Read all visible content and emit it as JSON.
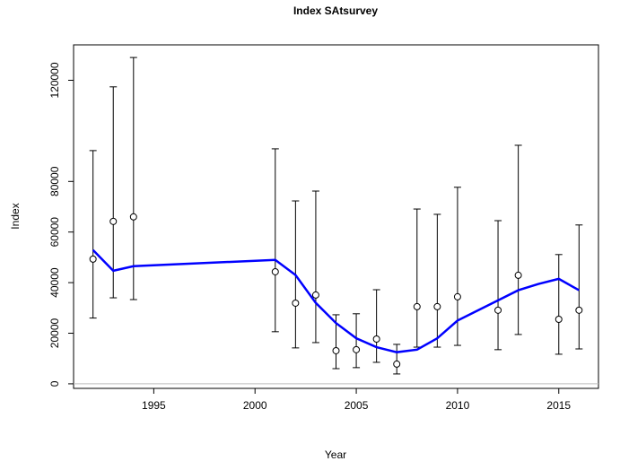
{
  "chart_data": {
    "type": "line",
    "title": "Index SAtsurvey",
    "xlabel": "Year",
    "ylabel": "Index",
    "x": [
      1992,
      1993,
      1994,
      2001,
      2002,
      2003,
      2004,
      2005,
      2006,
      2007,
      2008,
      2009,
      2010,
      2011,
      2012,
      2013,
      2014,
      2015,
      2016
    ],
    "fit": {
      "color": "#0000ff",
      "values": [
        52900,
        44700,
        46500,
        49000,
        43000,
        32000,
        24000,
        18000,
        14500,
        12500,
        13500,
        18000,
        25000,
        29000,
        33000,
        37000,
        39500,
        41500,
        37000
      ]
    },
    "observed": {
      "color": "#000000",
      "values": [
        49300,
        64200,
        66000,
        44300,
        31900,
        35100,
        13100,
        13500,
        17700,
        7800,
        30500,
        30500,
        34400,
        null,
        29100,
        42900,
        null,
        25500,
        29100
      ],
      "lower": [
        26000,
        34000,
        33300,
        20600,
        14200,
        16300,
        6000,
        6400,
        8500,
        3900,
        14500,
        14500,
        15200,
        null,
        13500,
        19500,
        null,
        11700,
        13800
      ],
      "upper": [
        92200,
        117400,
        129000,
        92900,
        72300,
        76200,
        27300,
        27700,
        37200,
        15600,
        69100,
        67000,
        77700,
        null,
        64500,
        94300,
        null,
        51100,
        62800
      ]
    },
    "xlim": [
      1991.04,
      2016.96
    ],
    "xticks": [
      1995,
      2000,
      2005,
      2010,
      2015
    ],
    "ylim": [
      -1800,
      134000
    ],
    "yticks": [
      0,
      20000,
      40000,
      60000,
      80000,
      120000
    ],
    "zero_line_color": "#bebebe"
  }
}
